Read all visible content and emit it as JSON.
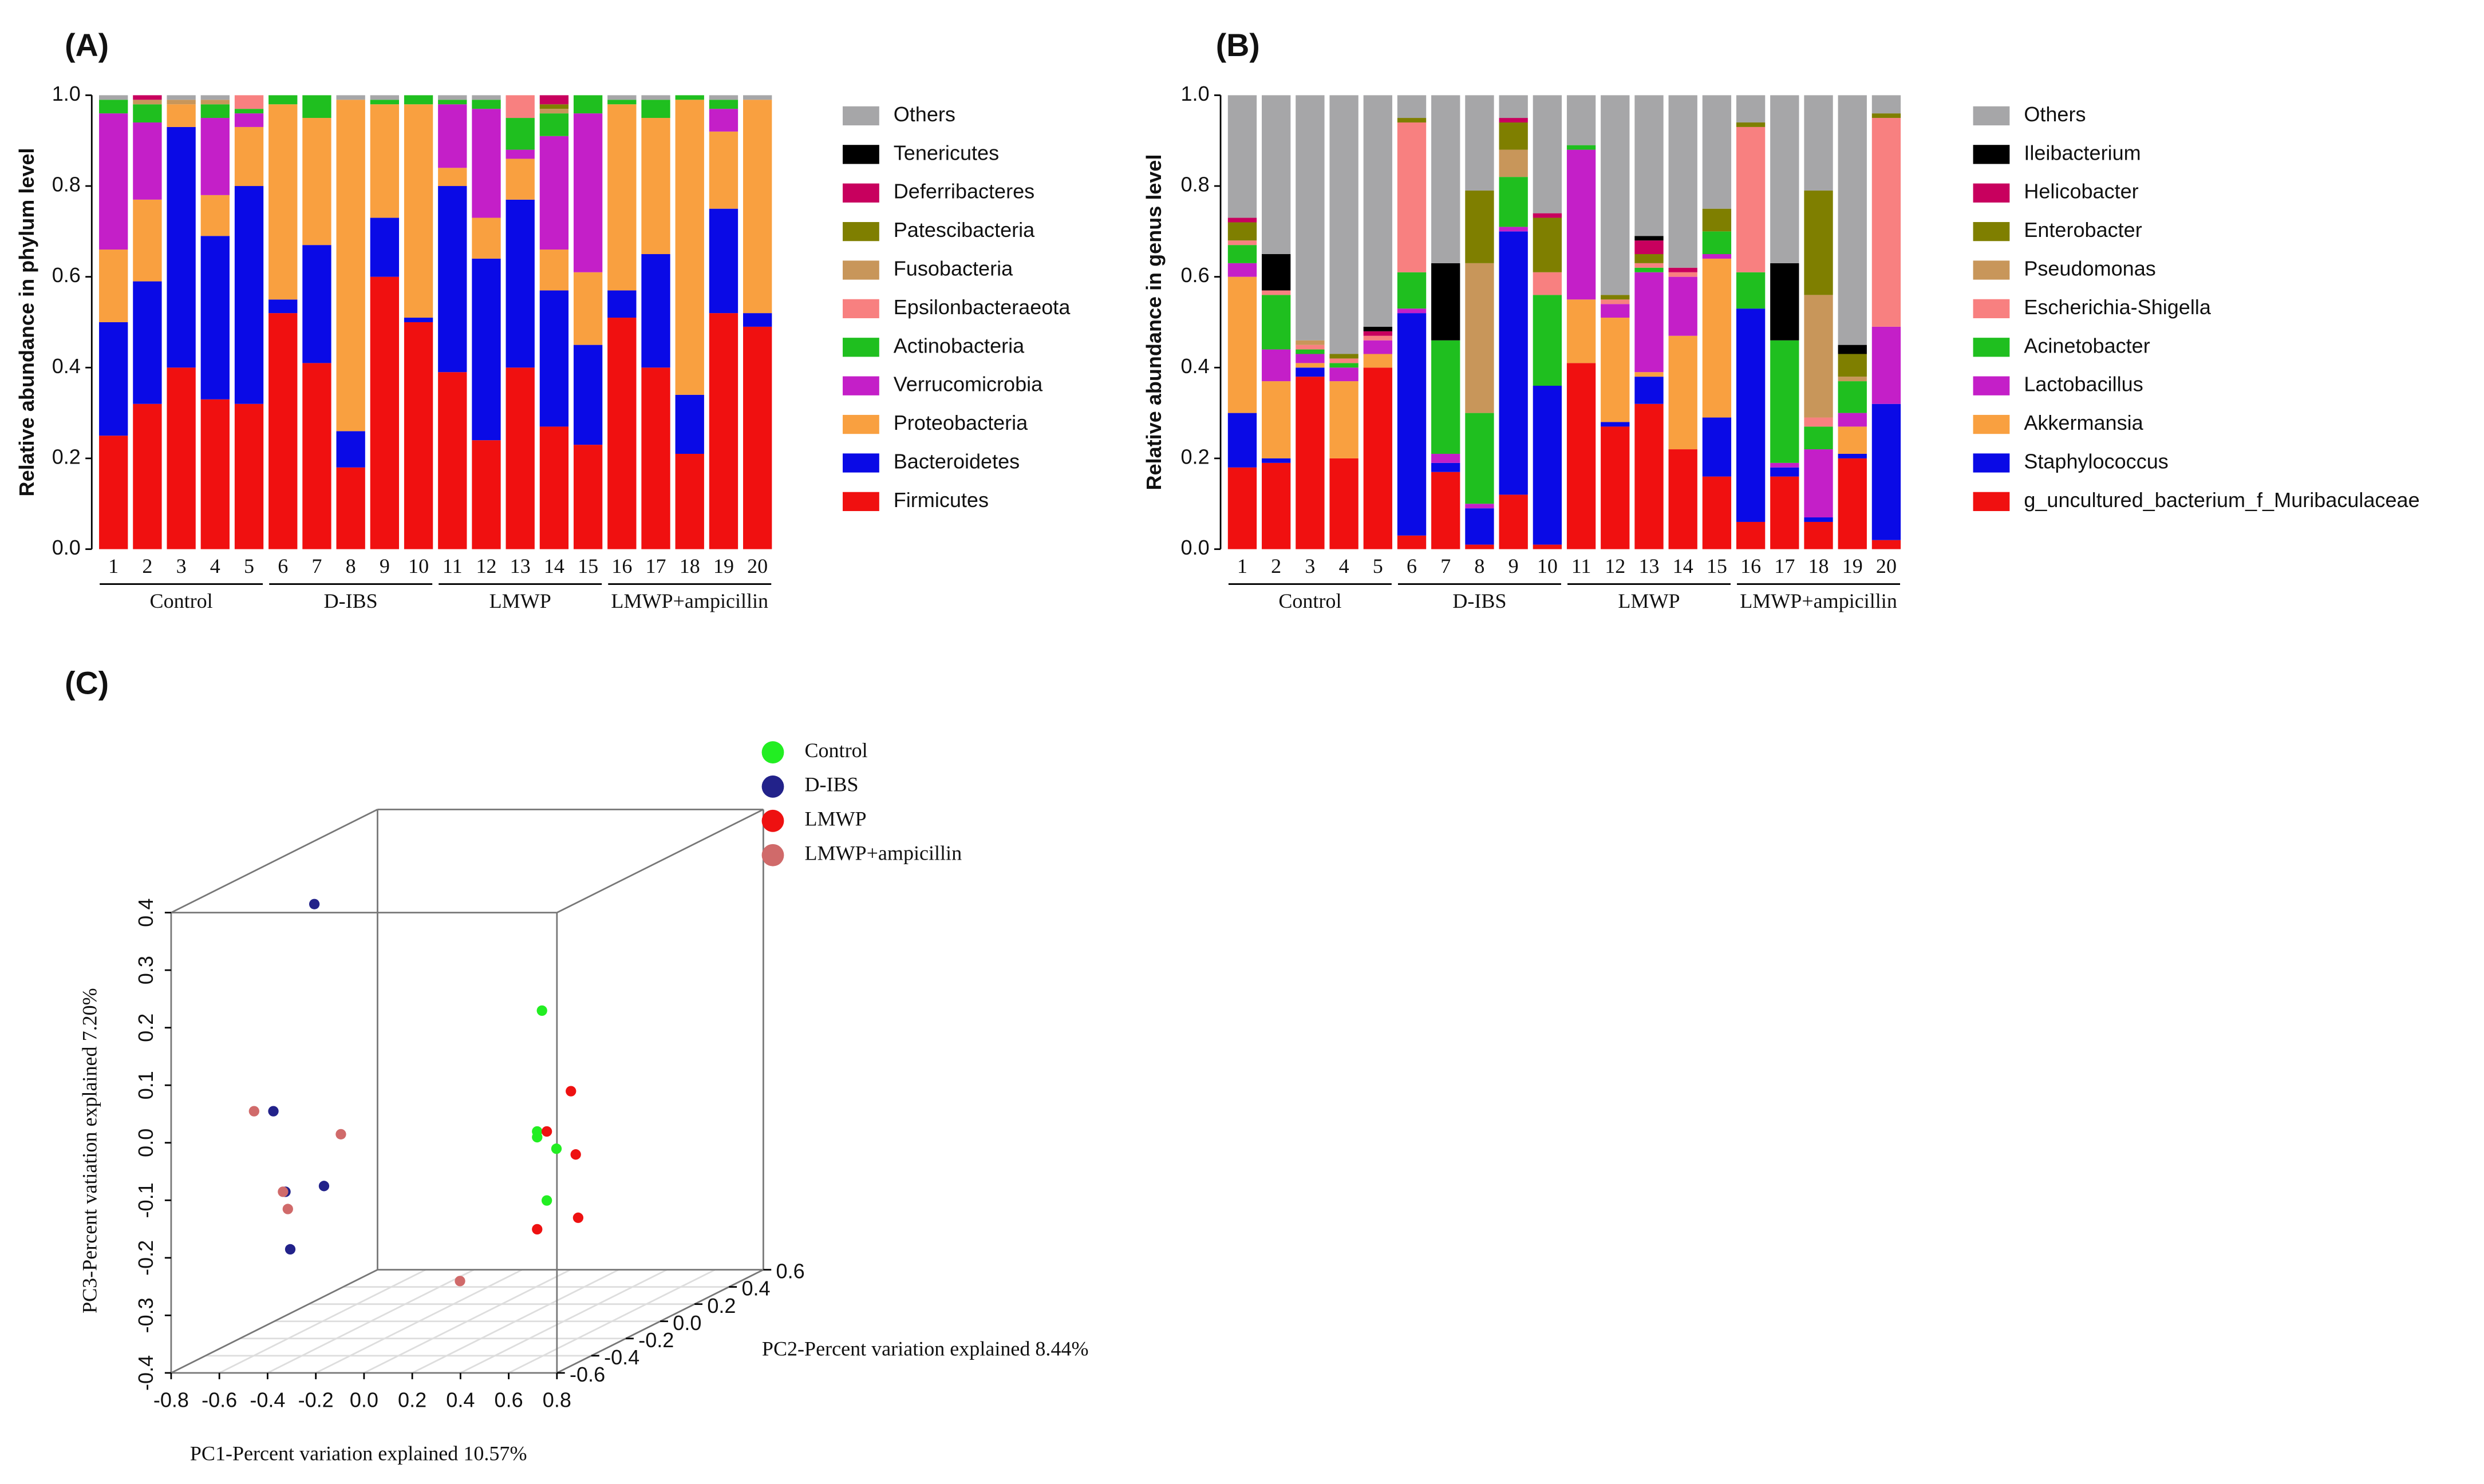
{
  "chart_data": [
    {
      "type": "stacked_bar",
      "label": "(A)",
      "ylabel": "Relative abundance in phylum level",
      "categories": [
        "1",
        "2",
        "3",
        "4",
        "5",
        "6",
        "7",
        "8",
        "9",
        "10",
        "11",
        "12",
        "13",
        "14",
        "15",
        "16",
        "17",
        "18",
        "19",
        "20"
      ],
      "groups": [
        "Control",
        "D-IBS",
        "LMWP",
        "LMWP+ampicillin"
      ],
      "ylim": [
        0,
        1
      ],
      "yticks": [
        {
          "value": 0,
          "label": "0.0"
        },
        0.2,
        0.4,
        0.6,
        0.8,
        {
          "value": 1,
          "label": "1.0"
        }
      ],
      "series": [
        {
          "name": "Firmicutes",
          "color": "#f01010",
          "values": [
            0.25,
            0.32,
            0.4,
            0.33,
            0.32,
            0.52,
            0.41,
            0.18,
            0.6,
            0.5,
            0.39,
            0.24,
            0.4,
            0.27,
            0.23,
            0.51,
            0.4,
            0.21,
            0.52,
            0.49
          ]
        },
        {
          "name": "Bacteroidetes",
          "color": "#0a0ae6",
          "values": [
            0.25,
            0.27,
            0.53,
            0.36,
            0.48,
            0.03,
            0.26,
            0.08,
            0.13,
            0.01,
            0.41,
            0.4,
            0.37,
            0.3,
            0.22,
            0.06,
            0.25,
            0.13,
            0.23,
            0.03
          ]
        },
        {
          "name": "Proteobacteria",
          "color": "#f9a040",
          "values": [
            0.16,
            0.18,
            0.05,
            0.09,
            0.13,
            0.43,
            0.28,
            0.73,
            0.25,
            0.47,
            0.04,
            0.09,
            0.09,
            0.09,
            0.16,
            0.41,
            0.3,
            0.65,
            0.17,
            0.47
          ]
        },
        {
          "name": "Verrucomicrobia",
          "color": "#c41fc8",
          "values": [
            0.3,
            0.17,
            0,
            0.17,
            0.03,
            0,
            0,
            0,
            0,
            0,
            0.14,
            0.24,
            0.02,
            0.25,
            0.35,
            0,
            0,
            0,
            0.05,
            0
          ]
        },
        {
          "name": "Actinobacteria",
          "color": "#1fbf1f",
          "values": [
            0.03,
            0.04,
            0,
            0.03,
            0.01,
            0.02,
            0.05,
            0,
            0.01,
            0.02,
            0.01,
            0.02,
            0.07,
            0.05,
            0.04,
            0.01,
            0.04,
            0.01,
            0.02,
            0
          ]
        },
        {
          "name": "Epsilonbacteraeota",
          "color": "#f88080",
          "values": [
            0,
            0,
            0,
            0,
            0.03,
            0,
            0,
            0,
            0,
            0,
            0,
            0,
            0.05,
            0,
            0,
            0,
            0,
            0,
            0,
            0
          ]
        },
        {
          "name": "Fusobacteria",
          "color": "#c8965a",
          "values": [
            0,
            0.01,
            0.01,
            0.01,
            0,
            0,
            0,
            0,
            0,
            0,
            0,
            0,
            0,
            0.01,
            0,
            0,
            0,
            0,
            0,
            0
          ]
        },
        {
          "name": "Patescibacteria",
          "color": "#7f7f00",
          "values": [
            0,
            0,
            0,
            0,
            0,
            0,
            0,
            0,
            0,
            0,
            0,
            0,
            0,
            0.01,
            0,
            0,
            0,
            0,
            0,
            0
          ]
        },
        {
          "name": "Deferribacteres",
          "color": "#c8005e",
          "values": [
            0,
            0.01,
            0,
            0,
            0,
            0,
            0,
            0,
            0,
            0,
            0,
            0,
            0,
            0.02,
            0,
            0,
            0,
            0,
            0,
            0
          ]
        },
        {
          "name": "Tenericutes",
          "color": "#000000",
          "values": [
            0,
            0,
            0,
            0,
            0,
            0,
            0,
            0,
            0,
            0,
            0,
            0,
            0,
            0,
            0,
            0,
            0,
            0,
            0,
            0
          ]
        },
        {
          "name": "Others",
          "color": "#a6a6a8",
          "values": [
            0.01,
            0,
            0.01,
            0.01,
            0,
            0,
            0,
            0.01,
            0.01,
            0,
            0.01,
            0.01,
            0,
            0,
            0,
            0.01,
            0.01,
            0,
            0.01,
            0.01
          ]
        }
      ]
    },
    {
      "type": "stacked_bar",
      "label": "(B)",
      "ylabel": "Relative abundance in genus level",
      "categories": [
        "1",
        "2",
        "3",
        "4",
        "5",
        "6",
        "7",
        "8",
        "9",
        "10",
        "11",
        "12",
        "13",
        "14",
        "15",
        "16",
        "17",
        "18",
        "19",
        "20"
      ],
      "groups": [
        "Control",
        "D-IBS",
        "LMWP",
        "LMWP+ampicillin"
      ],
      "ylim": [
        0,
        1
      ],
      "yticks": [
        {
          "value": 0,
          "label": "0.0"
        },
        0.2,
        0.4,
        0.6,
        0.8,
        {
          "value": 1,
          "label": "1.0"
        }
      ],
      "series": [
        {
          "name": "g_uncultured_bacterium_f_Muribaculaceae",
          "color": "#f01010",
          "values": [
            0.18,
            0.19,
            0.38,
            0.2,
            0.4,
            0.03,
            0.17,
            0.01,
            0.12,
            0.01,
            0.41,
            0.27,
            0.32,
            0.22,
            0.16,
            0.06,
            0.16,
            0.06,
            0.2,
            0.02
          ]
        },
        {
          "name": "Staphylococcus",
          "color": "#0a0ae6",
          "values": [
            0.12,
            0.01,
            0.02,
            0,
            0,
            0.49,
            0.02,
            0.08,
            0.58,
            0.35,
            0,
            0.01,
            0.06,
            0,
            0.13,
            0.47,
            0.02,
            0.01,
            0.01,
            0.3
          ]
        },
        {
          "name": "Akkermansia",
          "color": "#f9a040",
          "values": [
            0.3,
            0.17,
            0.01,
            0.17,
            0.03,
            0,
            0,
            0,
            0,
            0,
            0.14,
            0.23,
            0.01,
            0.25,
            0.35,
            0,
            0,
            0,
            0.06,
            0
          ]
        },
        {
          "name": "Lactobacillus",
          "color": "#c41fc8",
          "values": [
            0.03,
            0.07,
            0.02,
            0.03,
            0.03,
            0.01,
            0.02,
            0.01,
            0.01,
            0,
            0.33,
            0.03,
            0.22,
            0.13,
            0.01,
            0,
            0.01,
            0.15,
            0.03,
            0.17
          ]
        },
        {
          "name": "Acinetobacter",
          "color": "#1fbf1f",
          "values": [
            0.04,
            0.12,
            0.01,
            0.01,
            0,
            0.08,
            0.25,
            0.2,
            0.11,
            0.2,
            0.01,
            0,
            0.01,
            0,
            0.05,
            0.08,
            0.27,
            0.05,
            0.07,
            0
          ]
        },
        {
          "name": "Escherichia-Shigella",
          "color": "#f88080",
          "values": [
            0.01,
            0.01,
            0.01,
            0.01,
            0.01,
            0.33,
            0,
            0,
            0,
            0.05,
            0,
            0.01,
            0.01,
            0.01,
            0,
            0.32,
            0,
            0.02,
            0,
            0.46
          ]
        },
        {
          "name": "Pseudomonas",
          "color": "#c8965a",
          "values": [
            0,
            0,
            0.01,
            0,
            0,
            0,
            0,
            0.33,
            0.06,
            0,
            0,
            0,
            0,
            0,
            0,
            0,
            0,
            0.27,
            0.01,
            0
          ]
        },
        {
          "name": "Enterobacter",
          "color": "#7f7f00",
          "values": [
            0.04,
            0,
            0,
            0.01,
            0,
            0.01,
            0,
            0.16,
            0.06,
            0.12,
            0,
            0.01,
            0.02,
            0,
            0.05,
            0.01,
            0,
            0.23,
            0.05,
            0.01
          ]
        },
        {
          "name": "Helicobacter",
          "color": "#c8005e",
          "values": [
            0.01,
            0,
            0,
            0,
            0.01,
            0,
            0,
            0,
            0.01,
            0.01,
            0,
            0,
            0.03,
            0.01,
            0,
            0,
            0,
            0,
            0,
            0
          ]
        },
        {
          "name": "Ileibacterium",
          "color": "#000000",
          "values": [
            0,
            0.08,
            0,
            0,
            0.01,
            0,
            0.17,
            0,
            0,
            0,
            0,
            0,
            0.01,
            0,
            0,
            0,
            0.17,
            0,
            0.02,
            0
          ]
        },
        {
          "name": "Others",
          "color": "#a6a6a8",
          "values": [
            0.27,
            0.35,
            0.54,
            0.57,
            0.51,
            0.05,
            0.37,
            0.21,
            0.05,
            0.26,
            0.11,
            0.44,
            0.31,
            0.38,
            0.25,
            0.06,
            0.37,
            0.21,
            0.55,
            0.04
          ]
        }
      ]
    },
    {
      "type": "scatter3d",
      "label": "(C)",
      "xlabel": "PC1-Percent variation explained 10.57%",
      "ylabel": "PC2-Percent variation explained 8.44%",
      "zlabel": "PC3-Percent vatiation explained 7.20%",
      "xlim": [
        -0.8,
        0.8
      ],
      "ylim": [
        -0.6,
        0.6
      ],
      "zlim": [
        -0.4,
        0.4
      ],
      "xticks": [
        -0.8,
        -0.6,
        -0.4,
        -0.2,
        {
          "value": 0,
          "label": "0.0"
        },
        0.2,
        0.4,
        0.6,
        0.8
      ],
      "yticks": [
        -0.6,
        -0.4,
        -0.2,
        {
          "value": 0,
          "label": "0.0"
        },
        0.2,
        0.4,
        0.6
      ],
      "zticks": [
        -0.4,
        -0.3,
        -0.2,
        -0.1,
        {
          "value": 0,
          "label": "0.0"
        },
        0.1,
        0.2,
        0.3,
        0.4
      ],
      "grid": true,
      "series": [
        {
          "name": "Control",
          "color": "#22ee22",
          "x": [
            0.31,
            0.29,
            0.29,
            0.37,
            0.33
          ],
          "y": [
            0,
            0,
            0,
            0,
            0
          ],
          "z": [
            0.14,
            -0.07,
            -0.08,
            -0.1,
            -0.19
          ]
        },
        {
          "name": "D-IBS",
          "color": "#22228a",
          "x": [
            -0.42,
            -0.59,
            -0.54,
            -0.38,
            -0.52
          ],
          "y": [
            -0.3,
            -0.3,
            -0.3,
            -0.3,
            -0.3
          ],
          "z": [
            0.37,
            0.01,
            -0.13,
            -0.12,
            -0.23
          ]
        },
        {
          "name": "LMWP",
          "color": "#ee1111",
          "x": [
            0.43,
            0.33,
            0.45,
            0.46,
            0.29
          ],
          "y": [
            0,
            0,
            0,
            0,
            0
          ],
          "z": [
            0,
            -0.07,
            -0.11,
            -0.22,
            -0.24
          ]
        },
        {
          "name": "LMWP+ampicillin",
          "color": "#d06a6a",
          "x": [
            -0.67,
            -0.31,
            -0.55,
            -0.53,
            -0.03
          ],
          "y": [
            -0.3,
            -0.3,
            -0.3,
            -0.3,
            0
          ],
          "z": [
            0.01,
            -0.03,
            -0.13,
            -0.16,
            -0.33
          ]
        }
      ]
    }
  ]
}
